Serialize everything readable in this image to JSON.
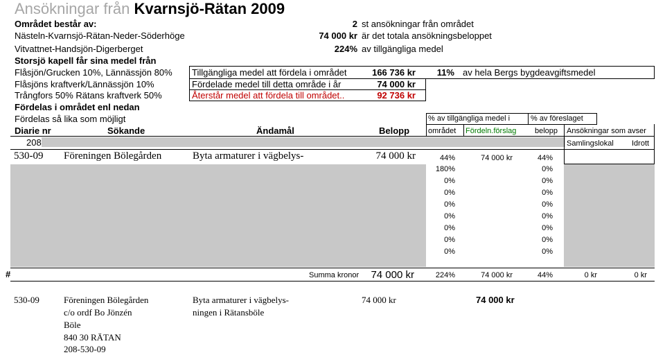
{
  "title": {
    "prefix": "Ansökningar från",
    "area": "Kvarnsjö-Rätan 2009"
  },
  "summary": {
    "area_label": "Området består av:",
    "area_name": "Nästeln-Kvarnsjö-Rätan-Neder-Söderhöge",
    "area_name2": "Vitvattnet-Handsjön-Digerberget",
    "count": "2",
    "count_text": "st ansökningar från området",
    "total": "74 000 kr",
    "total_text": "är det totala ansökningsbeloppet",
    "pct": "224%",
    "pct_text": "av tillgängliga medel",
    "funds_label": "Storsjö kapell får sina medel från",
    "source1": "Flåsjön/Grucken 10%, Lännässjön 80%",
    "source2": "Flåsjöns kraftverk/Lännässjön 10%",
    "source3": "Trångfors 50% Rätans kraftverk 50%",
    "distribute_label": "Fördelas i området enl nedan",
    "distribute_text": "Fördelas så lika som möjligt"
  },
  "funds_box": {
    "available_label": "Tillgängliga medel att fördela i området",
    "available_value": "166 736 kr",
    "available_pct": "11%",
    "available_text": "av hela Bergs bygdeavgiftsmedel",
    "distributed_label": "Fördelade medel till detta område i år",
    "distributed_value": "74 000 kr",
    "remaining_label": "Återstår medel att fördela till området..",
    "remaining_value": "92 736 kr"
  },
  "table": {
    "group_header_1": "% av tillgängliga medel i",
    "group_header_2": "% av föreslaget",
    "headers": {
      "diarie": "Diarie nr",
      "sokande": "Sökande",
      "andamal": "Ändamål",
      "belopp": "Belopp",
      "omradet": "området",
      "fordeln": "Fördeln.förslag",
      "belopp2": "belopp",
      "ansokningar": "Ansökningar som avser"
    },
    "prefix_cell": "208-",
    "sub_headers": {
      "samlingslokal": "Samlingslokal",
      "idrott": "Idrott"
    },
    "row1": {
      "diarie": "530-09",
      "sokande": "Föreningen Bölegården",
      "andamal": "Byta armaturer i vägbelys-",
      "belopp": "74 000 kr",
      "pct_omradet": "44%",
      "fordeln": "74 000 kr",
      "pct_foreslaget": "44%"
    },
    "extra_rows": [
      {
        "a": "180%",
        "b": "0%"
      },
      {
        "a": "0%",
        "b": "0%"
      },
      {
        "a": "0%",
        "b": "0%"
      },
      {
        "a": "0%",
        "b": "0%"
      },
      {
        "a": "0%",
        "b": "0%"
      },
      {
        "a": "0%",
        "b": "0%"
      },
      {
        "a": "0%",
        "b": "0%"
      },
      {
        "a": "0%",
        "b": "0%"
      }
    ],
    "sum": {
      "hash": "#",
      "label": "Summa kronor",
      "belopp": "74 000 kr",
      "pct": "224%",
      "fordeln": "74 000 kr",
      "pct2": "44%",
      "samlingslokal": "0 kr",
      "idrott": "0 kr"
    }
  },
  "detail": {
    "diarie": "530-09",
    "sokande_lines": [
      "Föreningen Bölegården",
      "c/o ordf Bo Jönzén",
      "Böle",
      "840 30  RÄTAN",
      "208-530-09"
    ],
    "andamal_lines": [
      "Byta armaturer i vägbelys-",
      "ningen i Rätansböle"
    ],
    "belopp": "74 000 kr",
    "fordeln": "74 000 kr"
  }
}
